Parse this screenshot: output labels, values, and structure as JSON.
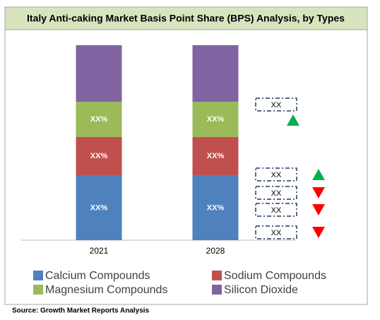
{
  "chart_data": {
    "type": "stacked_bar",
    "title": "Italy Anti-caking Market Basis Point Share (BPS) Analysis, by Types",
    "source": "Source: Growth Market Reports Analysis",
    "categories": [
      "2021",
      "2028"
    ],
    "ylim": [
      0,
      100
    ],
    "series": [
      {
        "name": "Calcium Compounds",
        "color": "#4f81bd",
        "values": [
          33,
          33
        ],
        "value_labels": [
          "XX%",
          "XX%"
        ]
      },
      {
        "name": "Sodium Compounds",
        "color": "#c0504d",
        "values": [
          20,
          20
        ],
        "value_labels": [
          "XX%",
          "XX%"
        ]
      },
      {
        "name": "Magnesium Compounds",
        "color": "#9bbb59",
        "values": [
          18,
          18
        ],
        "value_labels": [
          "XX%",
          "XX%"
        ]
      },
      {
        "name": "Silicon Dioxide",
        "color": "#8064a2",
        "values": [
          29,
          29
        ]
      }
    ],
    "annotations": [
      {
        "text": "XX",
        "trend": "up"
      },
      {
        "text": "XX",
        "trend": "up"
      },
      {
        "text": "XX",
        "trend": "down"
      },
      {
        "text": "XX",
        "trend": "down"
      },
      {
        "text": "XX",
        "trend": "down"
      }
    ]
  }
}
